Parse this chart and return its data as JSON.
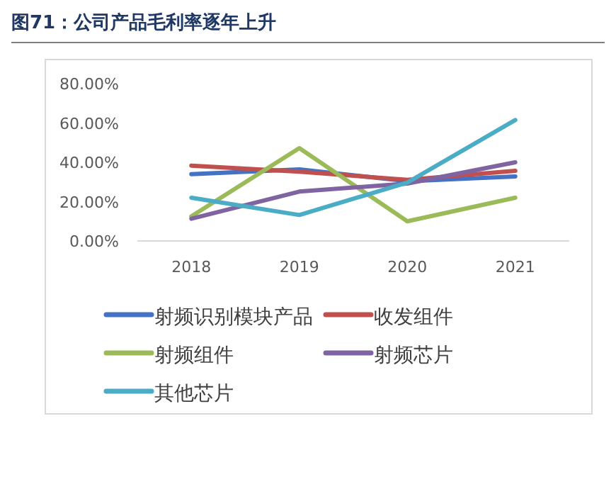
{
  "chart_data": {
    "type": "line",
    "title": "图71：公司产品毛利率逐年上升",
    "categories": [
      "2018",
      "2019",
      "2020",
      "2021"
    ],
    "series": [
      {
        "name": "射频识别模块产品",
        "color": "#4472c4",
        "values": [
          34,
          36.4,
          30.4,
          32.8
        ]
      },
      {
        "name": "收发组件",
        "color": "#c0504d",
        "values": [
          38.3,
          35.2,
          31.1,
          35.7
        ]
      },
      {
        "name": "射频组件",
        "color": "#9bbb59",
        "values": [
          12.5,
          47.2,
          10,
          22
        ]
      },
      {
        "name": "射频芯片",
        "color": "#8064a2",
        "values": [
          11.3,
          25.1,
          29.2,
          40
        ]
      },
      {
        "name": "其他芯片",
        "color": "#4bacc6",
        "values": [
          22,
          13.2,
          29.7,
          61.5
        ]
      }
    ],
    "ylim": [
      0,
      80
    ],
    "yticks": [
      {
        "value": 0,
        "label": "0.00%"
      },
      {
        "value": 20,
        "label": "20.00%"
      },
      {
        "value": 40,
        "label": "40.00%"
      },
      {
        "value": 60,
        "label": "60.00%"
      },
      {
        "value": 80,
        "label": "80.00%"
      }
    ],
    "grid": false,
    "legend": "bottom"
  }
}
